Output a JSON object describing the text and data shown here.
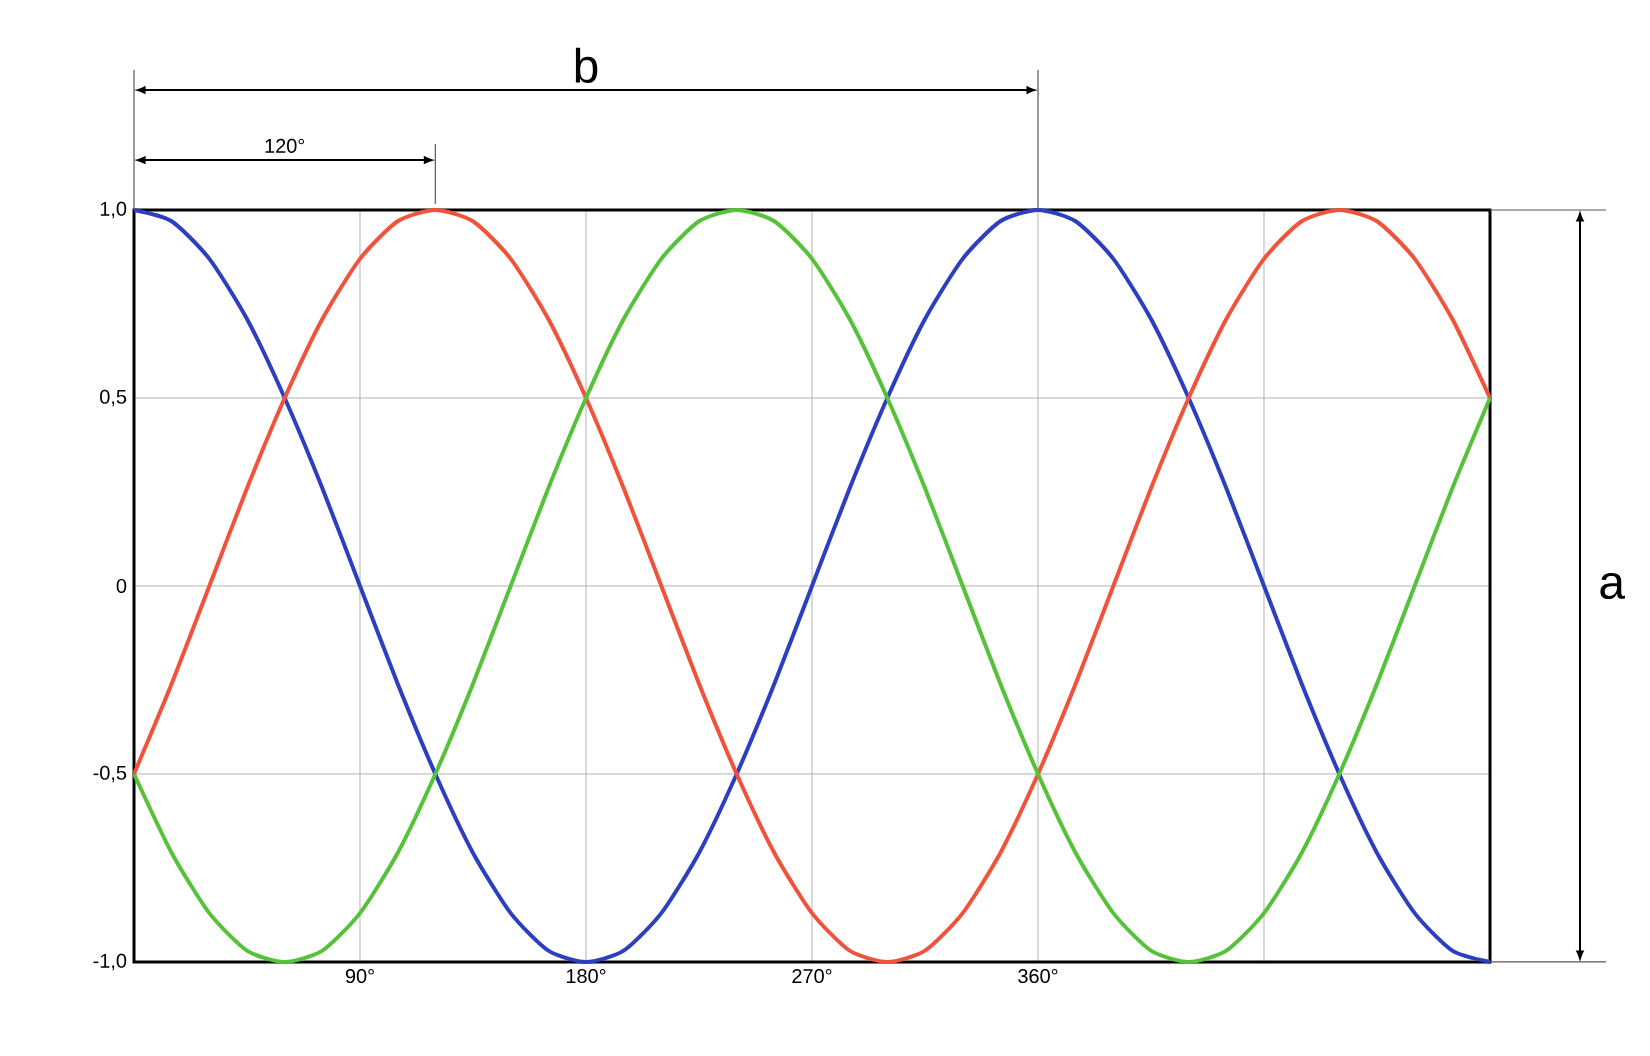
{
  "chart_data": {
    "type": "line",
    "x": [
      0,
      15,
      30,
      45,
      60,
      75,
      90,
      105,
      120,
      135,
      150,
      165,
      180,
      195,
      210,
      225,
      240,
      255,
      270,
      285,
      300,
      315,
      330,
      345,
      360,
      375,
      390,
      405,
      420,
      435,
      450,
      465,
      480,
      495,
      510,
      525,
      540
    ],
    "series": [
      {
        "color": "#2b3fbf",
        "values": [
          1,
          0.97,
          0.87,
          0.71,
          0.5,
          0.26,
          0,
          -0.26,
          -0.5,
          -0.71,
          -0.87,
          -0.97,
          -1,
          -0.97,
          -0.87,
          -0.71,
          -0.5,
          -0.26,
          0,
          0.26,
          0.5,
          0.71,
          0.87,
          0.97,
          1,
          0.97,
          0.87,
          0.71,
          0.5,
          0.26,
          0,
          -0.26,
          -0.5,
          -0.71,
          -0.87,
          -0.97,
          -1
        ]
      },
      {
        "color": "#f0533b",
        "values": [
          -0.5,
          -0.26,
          0,
          0.26,
          0.5,
          0.71,
          0.87,
          0.97,
          1,
          0.97,
          0.87,
          0.71,
          0.5,
          0.26,
          0,
          -0.26,
          -0.5,
          -0.71,
          -0.87,
          -0.97,
          -1,
          -0.97,
          -0.87,
          -0.71,
          -0.5,
          -0.26,
          0,
          0.26,
          0.5,
          0.71,
          0.87,
          0.97,
          1,
          0.97,
          0.87,
          0.71,
          0.5
        ]
      },
      {
        "color": "#55c23a",
        "values": [
          -0.5,
          -0.71,
          -0.87,
          -0.97,
          -1,
          -0.97,
          -0.87,
          -0.71,
          -0.5,
          -0.26,
          0,
          0.26,
          0.5,
          0.71,
          0.87,
          0.97,
          1,
          0.97,
          0.87,
          0.71,
          0.5,
          0.26,
          0,
          -0.26,
          -0.5,
          -0.71,
          -0.87,
          -0.97,
          -1,
          -0.97,
          -0.87,
          -0.71,
          -0.5,
          -0.26,
          0,
          0.26,
          0.5
        ]
      }
    ],
    "xlim": [
      0,
      540
    ],
    "ylim": [
      -1,
      1
    ],
    "xticks": [
      {
        "value": 90,
        "label": "90°"
      },
      {
        "value": 180,
        "label": "180°"
      },
      {
        "value": 270,
        "label": "270°"
      },
      {
        "value": 360,
        "label": "360°"
      },
      {
        "value": 450,
        "label": null
      }
    ],
    "yticks": [
      {
        "value": -1,
        "label": "-1,0"
      },
      {
        "value": -0.5,
        "label": "-0,5"
      },
      {
        "value": 0,
        "label": "0"
      },
      {
        "value": 0.5,
        "label": "0,5"
      },
      {
        "value": 1,
        "label": "1,0"
      }
    ],
    "grid": true,
    "marker": "none",
    "line_style": "solid",
    "annotations": [
      "b",
      "120°",
      "a"
    ]
  }
}
